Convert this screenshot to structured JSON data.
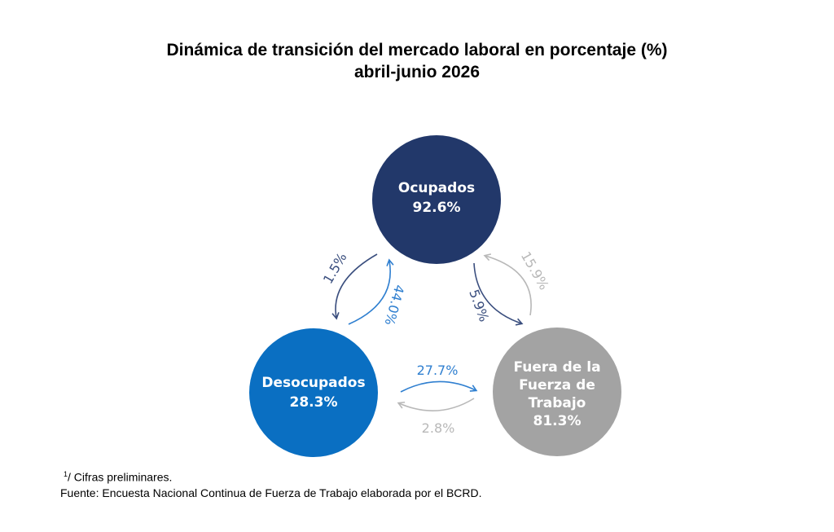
{
  "title": {
    "line1": "Dinámica de transición del mercado laboral en porcentaje (%)",
    "line2": "abril-junio 2026"
  },
  "nodes": {
    "ocupados": {
      "label": "Ocupados",
      "value": "92.6%",
      "color": "#22386a"
    },
    "desocupados": {
      "label": "Desocupados",
      "value": "28.3%",
      "color": "#0a6fc2"
    },
    "fuera": {
      "label_lines": [
        "Fuera de la",
        "Fuerza de",
        "Trabajo"
      ],
      "value": "81.3%",
      "color": "#a3a3a3"
    }
  },
  "transitions": {
    "ocupados_to_desocupados": {
      "value": "1.5%",
      "color": "#3a4e7e"
    },
    "desocupados_to_ocupados": {
      "value": "44.0%",
      "color": "#2f7fd0"
    },
    "ocupados_to_fuera": {
      "value": "5.9%",
      "color": "#3a4e7e"
    },
    "fuera_to_ocupados": {
      "value": "15.9%",
      "color": "#b8b8b8"
    },
    "desocupados_to_fuera": {
      "value": "27.7%",
      "color": "#2f7fd0"
    },
    "fuera_to_desocupados": {
      "value": "2.8%",
      "color": "#b8b8b8"
    }
  },
  "footnotes": {
    "note_mark": "1",
    "note_text": "/ Cifras preliminares.",
    "source": "Fuente: Encuesta Nacional Continua de Fuerza de Trabajo elaborada por el BCRD."
  }
}
